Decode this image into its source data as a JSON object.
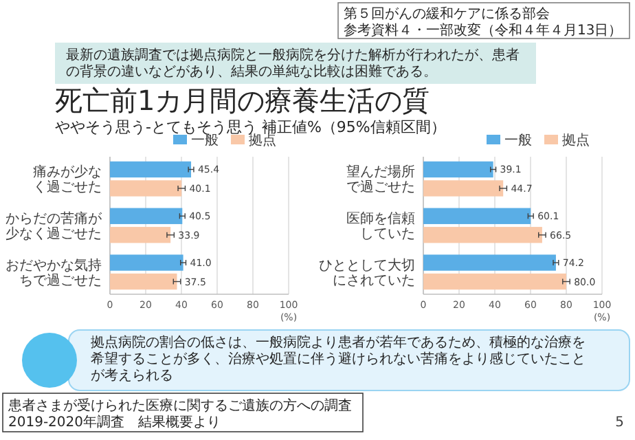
{
  "chart_data": [
    {
      "type": "bar",
      "orientation": "horizontal",
      "title": "死亡前1カ月間の療養生活の質",
      "subtitle": "ややそう思う-とてもそう思う 補正値%（95%信頼区間）",
      "xlabel": "(%)",
      "categories": [
        "痛みが少なく過ごせた",
        "からだの苦痛が少なく過ごせた",
        "おだやかな気持ちで過ごせた"
      ],
      "series": [
        {
          "name": "一般",
          "color": "#5aaee6",
          "values": [
            45.4,
            40.5,
            41.0
          ],
          "value_labels": [
            "45.4",
            "40.5",
            "41.0"
          ],
          "errors": [
            1.5,
            1.5,
            1.5
          ]
        },
        {
          "name": "拠点",
          "color": "#f9c8a8",
          "values": [
            40.1,
            33.9,
            37.5
          ],
          "value_labels": [
            "40.1",
            "33.9",
            "37.5"
          ],
          "errors": [
            2,
            2,
            2
          ]
        }
      ],
      "xlim": [
        0,
        100
      ],
      "xticks": [
        0,
        20,
        40,
        60,
        80,
        100
      ],
      "grid": "x",
      "legend": "top right",
      "annotations": [
        "第５回がんの緩和ケアに係る部会",
        "参考資料４・一部改変（令和４年４月13日）",
        "最新の遺族調査では拠点病院と一般病院を分けた解析が行われたが、患者の背景の違いなどがあり、結果の単純な比較は困難である。",
        "拠点病院の割合の低さは、一般病院より患者が若年であるため、積極的な治療を希望することが多く、治療や処置に伴う避けられない苦痛をより感じていたことが考えられる",
        "患者さまが受けられた医療に関するご遺族の方への調査",
        "2019-2020年調査　結果概要より",
        "5"
      ]
    },
    {
      "type": "bar",
      "orientation": "horizontal",
      "xlabel": "(%)",
      "categories": [
        "望んだ場所で過ごせた",
        "医師を信頼していた",
        "ひととして大切にされていた"
      ],
      "series": [
        {
          "name": "一般",
          "color": "#5aaee6",
          "values": [
            39.1,
            60.1,
            74.2
          ],
          "value_labels": [
            "39.1",
            "60.1",
            "74.2"
          ],
          "errors": [
            1.5,
            1.5,
            1.5
          ]
        },
        {
          "name": "拠点",
          "color": "#f9c8a8",
          "values": [
            44.7,
            66.5,
            80.0
          ],
          "value_labels": [
            "44.7",
            "66.5",
            "80.0"
          ],
          "errors": [
            2,
            2,
            2
          ]
        }
      ],
      "xlim": [
        0,
        100
      ],
      "xticks": [
        0,
        20,
        40,
        60,
        80,
        100
      ],
      "grid": "x",
      "legend": "top right"
    }
  ]
}
